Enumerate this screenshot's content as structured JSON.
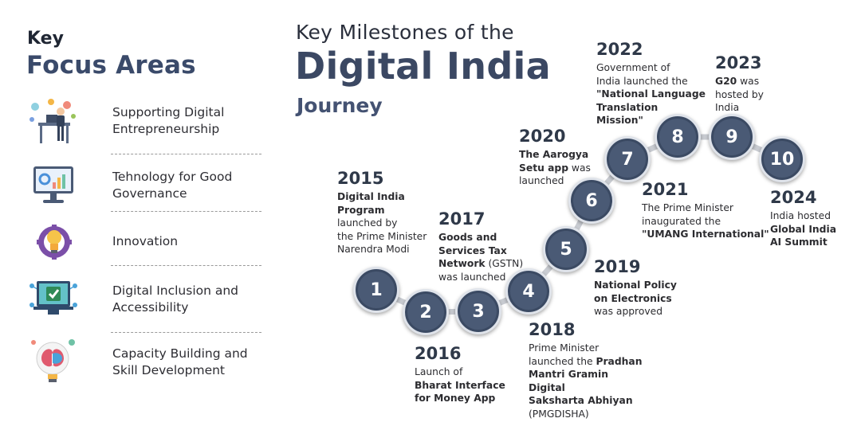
{
  "left_panel": {
    "key_label": "Key",
    "title": "Focus Areas",
    "items": [
      {
        "label": "Supporting Digital Entrepreneurship"
      },
      {
        "label": "Tehnology for Good Governance"
      },
      {
        "label": "Innovation"
      },
      {
        "label": "Digital Inclusion and Accessibility"
      },
      {
        "label": "Capacity Building and Skill Development"
      }
    ]
  },
  "header": {
    "line1": "Key Milestones of the",
    "line2": "Digital India",
    "line3": "Journey"
  },
  "milestones": [
    {
      "number": "1",
      "year": "2015",
      "desc": "Digital India Program launched by the Prime Minister Narendra Modi"
    },
    {
      "number": "2",
      "year": "2016",
      "desc": "Launch of Bharat Interface for Money App"
    },
    {
      "number": "3",
      "year": "2017",
      "desc": "Goods and Services Tax Network (GSTN) was launched"
    },
    {
      "number": "4",
      "year": "2018",
      "desc": "Prime Minister launched the Pradhan Mantri Gramin Digital Saksharta Abhiyan (PMGDISHA)"
    },
    {
      "number": "5",
      "year": "2019",
      "desc": "National Policy on Electronics was approved"
    },
    {
      "number": "6",
      "year": "2020",
      "desc": "The Aarogya Setu app was launched"
    },
    {
      "number": "7",
      "year": "2021",
      "desc": "The Prime Minister inaugurated the \"UMANG International\""
    },
    {
      "number": "8",
      "year": "2022",
      "desc": "Government of India launched the \"National Language Translation Mission\""
    },
    {
      "number": "9",
      "year": "2023",
      "desc": "G20 was hosted by India"
    },
    {
      "number": "10",
      "year": "2024",
      "desc": "India hosted Global India AI Summit"
    }
  ],
  "colors": {
    "node_fill": "#4a5a75",
    "title_accent": "#3b4863",
    "path": "#c9ccd2"
  }
}
